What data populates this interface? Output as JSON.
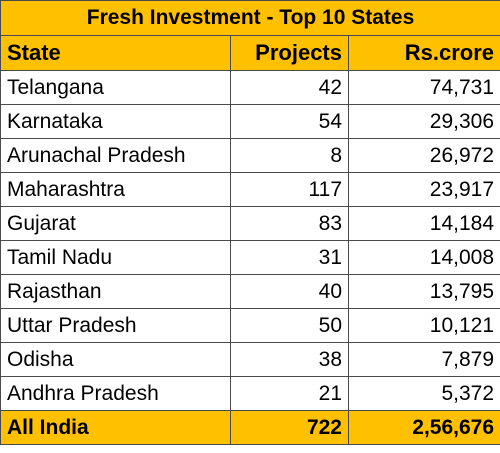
{
  "title": "Fresh Investment - Top 10 States",
  "headers": {
    "state": "State",
    "projects": "Projects",
    "amount": "Rs.crore"
  },
  "rows": [
    {
      "state": "Telangana",
      "projects": "42",
      "amount": "74,731"
    },
    {
      "state": "Karnataka",
      "projects": "54",
      "amount": "29,306"
    },
    {
      "state": "Arunachal Pradesh",
      "projects": "8",
      "amount": "26,972"
    },
    {
      "state": "Maharashtra",
      "projects": "117",
      "amount": "23,917"
    },
    {
      "state": "Gujarat",
      "projects": "83",
      "amount": "14,184"
    },
    {
      "state": "Tamil Nadu",
      "projects": "31",
      "amount": "14,008"
    },
    {
      "state": "Rajasthan",
      "projects": "40",
      "amount": "13,795"
    },
    {
      "state": "Uttar Pradesh",
      "projects": "50",
      "amount": "10,121"
    },
    {
      "state": "Odisha",
      "projects": "38",
      "amount": "7,879"
    },
    {
      "state": "Andhra Pradesh",
      "projects": "21",
      "amount": "5,372"
    }
  ],
  "total": {
    "state": "All India",
    "projects": "722",
    "amount": "2,56,676"
  },
  "colors": {
    "header_bg": "#ffc000",
    "border": "#4a4a4a"
  }
}
